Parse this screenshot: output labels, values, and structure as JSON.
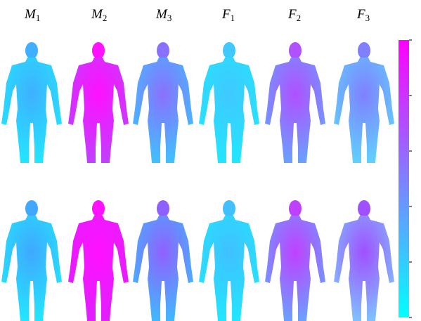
{
  "columns": [
    {
      "letter": "M",
      "index": "1"
    },
    {
      "letter": "M",
      "index": "2"
    },
    {
      "letter": "M",
      "index": "3"
    },
    {
      "letter": "F",
      "index": "1"
    },
    {
      "letter": "F",
      "index": "2"
    },
    {
      "letter": "F",
      "index": "3"
    }
  ]
}
